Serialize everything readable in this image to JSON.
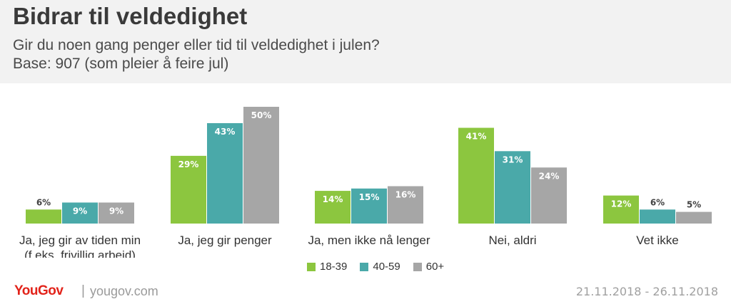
{
  "header": {
    "title": "Bidrar til veldedighet",
    "subtitle_line1": "Gir du noen gang penger eller tid til veldedighet i julen?",
    "subtitle_line2": "Base: 907 (som pleier å feire jul)"
  },
  "footer": {
    "logo": "YouGov",
    "separator": "|",
    "url": "yougov.com",
    "date_range": "21.11.2018 - 26.11.2018"
  },
  "colors": {
    "18-39": "#8cc63f",
    "40-59": "#4aa9a9",
    "60+": "#a6a6a6"
  },
  "chart_data": {
    "type": "bar",
    "categories": [
      [
        "Ja, jeg gir av tiden min",
        "(f.eks. frivillig arbeid)"
      ],
      [
        "Ja, jeg gir penger"
      ],
      [
        "Ja, men ikke nå lenger"
      ],
      [
        "Nei, aldri"
      ],
      [
        "Vet ikke"
      ]
    ],
    "series": [
      {
        "name": "18-39",
        "values": [
          6,
          29,
          14,
          41,
          12
        ],
        "labels": [
          "6%",
          "29%",
          "14%",
          "41%",
          "12%"
        ]
      },
      {
        "name": "40-59",
        "values": [
          9,
          43,
          15,
          31,
          6
        ],
        "labels": [
          "9%",
          "43%",
          "15%",
          "31%",
          "6%"
        ]
      },
      {
        "name": "60+",
        "values": [
          9,
          50,
          16,
          24,
          5
        ],
        "labels": [
          "9%",
          "50%",
          "16%",
          "24%",
          "5%"
        ]
      }
    ],
    "ylim": [
      0,
      50
    ],
    "legend_position": "bottom-center",
    "grid": false
  }
}
